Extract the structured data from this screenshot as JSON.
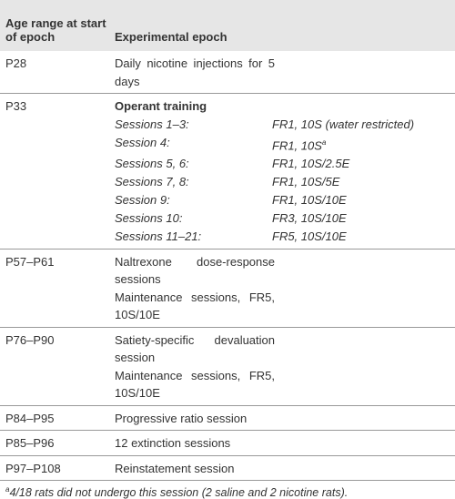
{
  "table": {
    "header": [
      "Age range at start of epoch",
      "Experimental epoch"
    ],
    "rows": [
      {
        "age": "P28",
        "epoch": [
          "Daily nicotine injections for 5 days"
        ]
      },
      {
        "age": "P33",
        "epoch": [
          "Operant training"
        ],
        "sessions": [
          [
            "Sessions 1–3:",
            "FR1, 10S (water restricted)"
          ],
          [
            "Session 4:",
            "FR1, 10S"
          ],
          [
            "Sessions 5, 6:",
            "FR1, 10S/2.5E"
          ],
          [
            "Sessions 7, 8:",
            "FR1, 10S/5E"
          ],
          [
            "Session 9:",
            "FR1, 10S/10E"
          ],
          [
            "Sessions 10:",
            "FR3, 10S/10E"
          ],
          [
            "Sessions 11–21:",
            "FR5, 10S/10E"
          ]
        ]
      },
      {
        "age": "P57–P61",
        "epoch": [
          "Naltrexone dose-response sessions",
          "Maintenance sessions, FR5, 10S/10E"
        ]
      },
      {
        "age": "P76–P90",
        "epoch": [
          "Satiety-specific devaluation session",
          "Maintenance sessions, FR5, 10S/10E"
        ]
      },
      {
        "age": "P84–P95",
        "epoch": [
          "Progressive ratio session"
        ]
      },
      {
        "age": "P85–P96",
        "epoch": [
          "12 extinction sessions"
        ]
      },
      {
        "age": "P97–P108",
        "epoch": [
          "Reinstatement session"
        ]
      }
    ],
    "note_marker": "a",
    "footnote": "4/18 rats did not undergo this session (2 saline and 2 nicotine rats)."
  }
}
